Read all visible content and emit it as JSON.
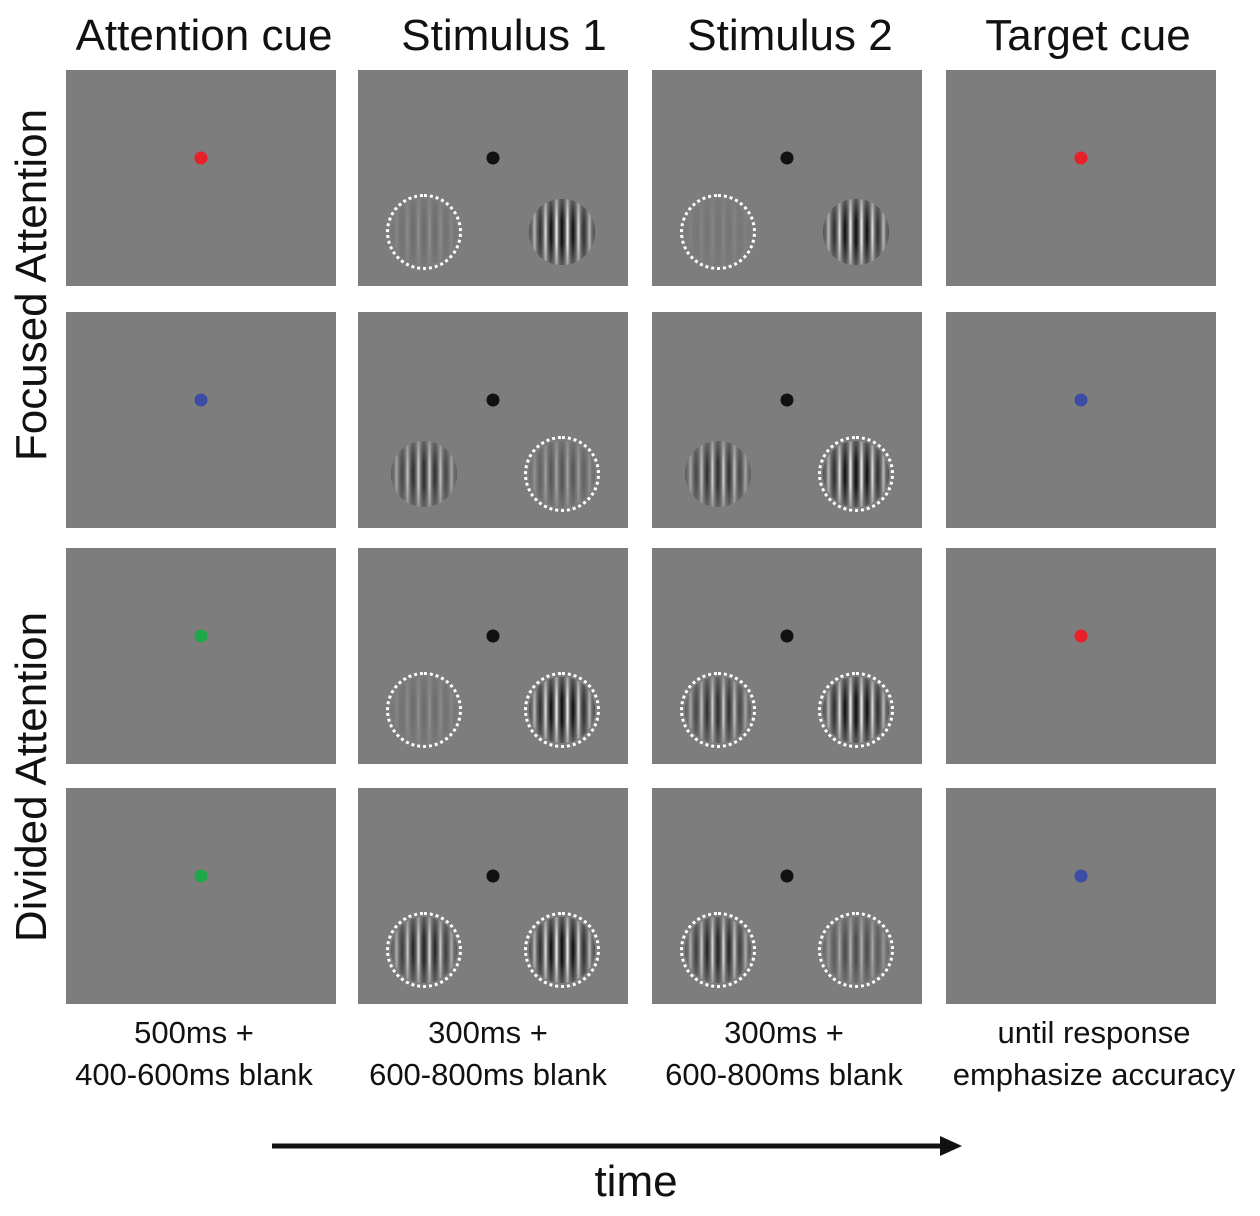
{
  "columns": [
    {
      "header": "Attention cue",
      "timing": [
        "500ms +",
        "400-600ms blank"
      ]
    },
    {
      "header": "Stimulus 1",
      "timing": [
        "300ms +",
        "600-800ms blank"
      ]
    },
    {
      "header": "Stimulus 2",
      "timing": [
        "300ms +",
        "600-800ms blank"
      ]
    },
    {
      "header": "Target cue",
      "timing": [
        "until response",
        "emphasize accuracy"
      ]
    }
  ],
  "row_groups": [
    "Focused Attention",
    "Divided Attention"
  ],
  "time_label": "time",
  "colors": {
    "red": "#e8202a",
    "blue": "#3a4ea8",
    "green": "#1fa84a",
    "black": "#111111",
    "panel_gray": "#7d7d7d"
  },
  "rows": [
    {
      "attention_cue": "red",
      "stimulus1": {
        "left": {
          "contrast": 0.15,
          "ring": true
        },
        "right": {
          "contrast": 1.0,
          "ring": false
        }
      },
      "stimulus2": {
        "left": {
          "contrast": 0.08,
          "ring": true
        },
        "right": {
          "contrast": 1.0,
          "ring": false
        }
      },
      "target_cue": "red"
    },
    {
      "attention_cue": "blue",
      "stimulus1": {
        "left": {
          "contrast": 0.7,
          "ring": false
        },
        "right": {
          "contrast": 0.35,
          "ring": true
        }
      },
      "stimulus2": {
        "left": {
          "contrast": 0.7,
          "ring": false
        },
        "right": {
          "contrast": 1.0,
          "ring": true
        }
      },
      "target_cue": "blue"
    },
    {
      "attention_cue": "green",
      "stimulus1": {
        "left": {
          "contrast": 0.15,
          "ring": true
        },
        "right": {
          "contrast": 1.0,
          "ring": true
        }
      },
      "stimulus2": {
        "left": {
          "contrast": 0.7,
          "ring": true
        },
        "right": {
          "contrast": 1.0,
          "ring": true
        }
      },
      "target_cue": "red"
    },
    {
      "attention_cue": "green",
      "stimulus1": {
        "left": {
          "contrast": 0.8,
          "ring": true
        },
        "right": {
          "contrast": 1.0,
          "ring": true
        }
      },
      "stimulus2": {
        "left": {
          "contrast": 0.8,
          "ring": true
        },
        "right": {
          "contrast": 0.45,
          "ring": true
        }
      },
      "target_cue": "blue"
    }
  ]
}
